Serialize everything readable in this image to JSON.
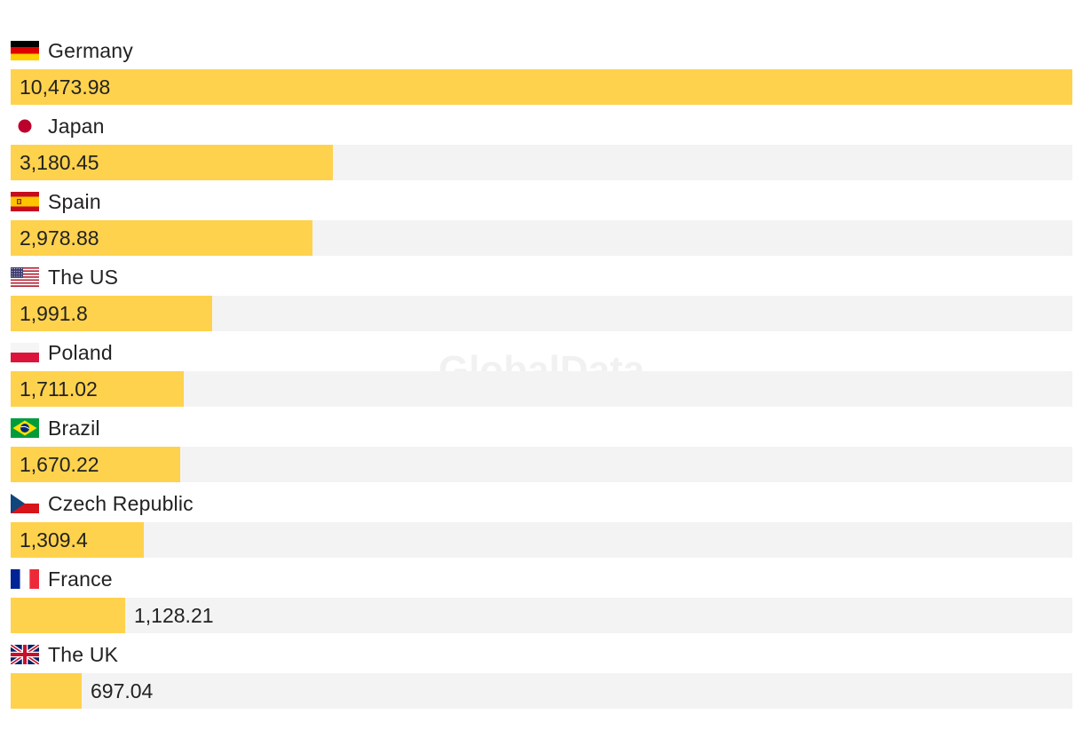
{
  "watermark": "GlobalData",
  "colors": {
    "bar": "#FFD24D",
    "track": "#F3F3F3",
    "text": "#222222"
  },
  "chart_data": {
    "type": "bar",
    "orientation": "horizontal",
    "title": "",
    "xlabel": "",
    "ylabel": "",
    "xlim": [
      0,
      10473.98
    ],
    "grid": false,
    "legend": "none",
    "categories": [
      "Germany",
      "Japan",
      "Spain",
      "The US",
      "Poland",
      "Brazil",
      "Czech Republic",
      "France",
      "The UK"
    ],
    "values": [
      10473.98,
      3180.45,
      2978.88,
      1991.8,
      1711.02,
      1670.22,
      1309.4,
      1128.21,
      697.04
    ],
    "value_labels": [
      "10,473.98",
      "3,180.45",
      "2,978.88",
      "1,991.8",
      "1,711.02",
      "1,670.22",
      "1,309.4",
      "1,128.21",
      "697.04"
    ],
    "flags": [
      "germany-flag-icon",
      "japan-flag-icon",
      "spain-flag-icon",
      "us-flag-icon",
      "poland-flag-icon",
      "brazil-flag-icon",
      "czech-flag-icon",
      "france-flag-icon",
      "uk-flag-icon"
    ]
  }
}
